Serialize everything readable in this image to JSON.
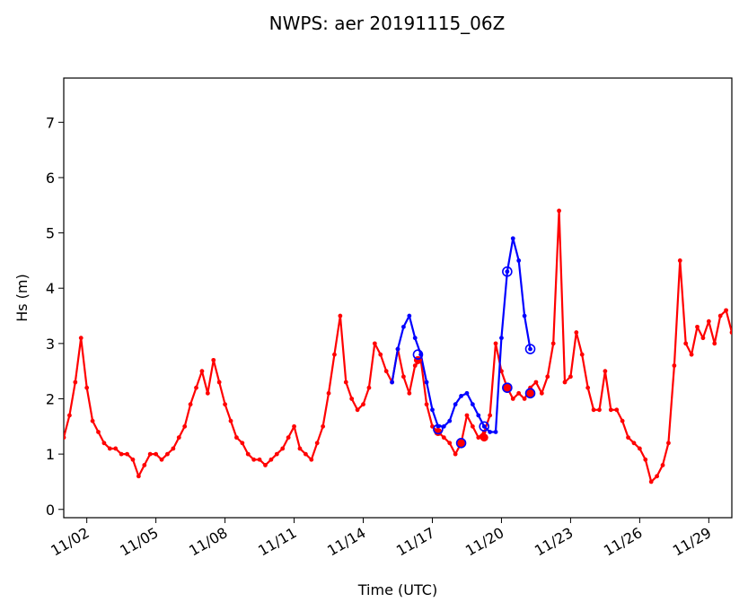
{
  "chart_data": {
    "type": "line",
    "title": "NWPS: aer 20191115_06Z",
    "xlabel": "Time (UTC)",
    "ylabel": "Hs (m)",
    "xlim": [
      "2019-11-01T00:00",
      "2019-11-30T00:00"
    ],
    "ylim": [
      -0.15,
      7.8
    ],
    "x_ticks": [
      {
        "date": "2019-11-02",
        "label": "11/02"
      },
      {
        "date": "2019-11-05",
        "label": "11/05"
      },
      {
        "date": "2019-11-08",
        "label": "11/08"
      },
      {
        "date": "2019-11-11",
        "label": "11/11"
      },
      {
        "date": "2019-11-14",
        "label": "11/14"
      },
      {
        "date": "2019-11-17",
        "label": "11/17"
      },
      {
        "date": "2019-11-20",
        "label": "11/20"
      },
      {
        "date": "2019-11-23",
        "label": "11/23"
      },
      {
        "date": "2019-11-26",
        "label": "11/26"
      },
      {
        "date": "2019-11-29",
        "label": "11/29"
      }
    ],
    "y_ticks": [
      0,
      1,
      2,
      3,
      4,
      5,
      6,
      7
    ],
    "grid": false,
    "legend": "none",
    "series": [
      {
        "color": "#ff0000",
        "marker": "small-dot",
        "points": [
          [
            "2019-11-01T00:00",
            1.3
          ],
          [
            "2019-11-01T06:00",
            1.7
          ],
          [
            "2019-11-01T12:00",
            2.3
          ],
          [
            "2019-11-01T18:00",
            3.1
          ],
          [
            "2019-11-02T00:00",
            2.2
          ],
          [
            "2019-11-02T06:00",
            1.6
          ],
          [
            "2019-11-02T12:00",
            1.4
          ],
          [
            "2019-11-02T18:00",
            1.2
          ],
          [
            "2019-11-03T00:00",
            1.1
          ],
          [
            "2019-11-03T06:00",
            1.1
          ],
          [
            "2019-11-03T12:00",
            1.0
          ],
          [
            "2019-11-03T18:00",
            1.0
          ],
          [
            "2019-11-04T00:00",
            0.9
          ],
          [
            "2019-11-04T06:00",
            0.6
          ],
          [
            "2019-11-04T12:00",
            0.8
          ],
          [
            "2019-11-04T18:00",
            1.0
          ],
          [
            "2019-11-05T00:00",
            1.0
          ],
          [
            "2019-11-05T06:00",
            0.9
          ],
          [
            "2019-11-05T12:00",
            1.0
          ],
          [
            "2019-11-05T18:00",
            1.1
          ],
          [
            "2019-11-06T00:00",
            1.3
          ],
          [
            "2019-11-06T06:00",
            1.5
          ],
          [
            "2019-11-06T12:00",
            1.9
          ],
          [
            "2019-11-06T18:00",
            2.2
          ],
          [
            "2019-11-07T00:00",
            2.5
          ],
          [
            "2019-11-07T06:00",
            2.1
          ],
          [
            "2019-11-07T12:00",
            2.7
          ],
          [
            "2019-11-07T18:00",
            2.3
          ],
          [
            "2019-11-08T00:00",
            1.9
          ],
          [
            "2019-11-08T06:00",
            1.6
          ],
          [
            "2019-11-08T12:00",
            1.3
          ],
          [
            "2019-11-08T18:00",
            1.2
          ],
          [
            "2019-11-09T00:00",
            1.0
          ],
          [
            "2019-11-09T06:00",
            0.9
          ],
          [
            "2019-11-09T12:00",
            0.9
          ],
          [
            "2019-11-09T18:00",
            0.8
          ],
          [
            "2019-11-10T00:00",
            0.9
          ],
          [
            "2019-11-10T06:00",
            1.0
          ],
          [
            "2019-11-10T12:00",
            1.1
          ],
          [
            "2019-11-10T18:00",
            1.3
          ],
          [
            "2019-11-11T00:00",
            1.5
          ],
          [
            "2019-11-11T06:00",
            1.1
          ],
          [
            "2019-11-11T12:00",
            1.0
          ],
          [
            "2019-11-11T18:00",
            0.9
          ],
          [
            "2019-11-12T00:00",
            1.2
          ],
          [
            "2019-11-12T06:00",
            1.5
          ],
          [
            "2019-11-12T12:00",
            2.1
          ],
          [
            "2019-11-12T18:00",
            2.8
          ],
          [
            "2019-11-13T00:00",
            3.5
          ],
          [
            "2019-11-13T06:00",
            2.3
          ],
          [
            "2019-11-13T12:00",
            2.0
          ],
          [
            "2019-11-13T18:00",
            1.8
          ],
          [
            "2019-11-14T00:00",
            1.9
          ],
          [
            "2019-11-14T06:00",
            2.2
          ],
          [
            "2019-11-14T12:00",
            3.0
          ],
          [
            "2019-11-14T18:00",
            2.8
          ],
          [
            "2019-11-15T00:00",
            2.5
          ],
          [
            "2019-11-15T06:00",
            2.3
          ],
          [
            "2019-11-15T12:00",
            2.9
          ],
          [
            "2019-11-15T18:00",
            2.4
          ],
          [
            "2019-11-16T00:00",
            2.1
          ],
          [
            "2019-11-16T06:00",
            2.6
          ],
          [
            "2019-11-16T12:00",
            2.7
          ],
          [
            "2019-11-16T18:00",
            1.9
          ],
          [
            "2019-11-17T00:00",
            1.5
          ],
          [
            "2019-11-17T06:00",
            1.4
          ],
          [
            "2019-11-17T12:00",
            1.3
          ],
          [
            "2019-11-17T18:00",
            1.2
          ],
          [
            "2019-11-18T00:00",
            1.0
          ],
          [
            "2019-11-18T06:00",
            1.2
          ],
          [
            "2019-11-18T12:00",
            1.7
          ],
          [
            "2019-11-18T18:00",
            1.5
          ],
          [
            "2019-11-19T00:00",
            1.3
          ],
          [
            "2019-11-19T06:00",
            1.4
          ],
          [
            "2019-11-19T12:00",
            1.7
          ],
          [
            "2019-11-19T18:00",
            3.0
          ],
          [
            "2019-11-20T00:00",
            2.5
          ],
          [
            "2019-11-20T06:00",
            2.2
          ],
          [
            "2019-11-20T12:00",
            2.0
          ],
          [
            "2019-11-20T18:00",
            2.1
          ],
          [
            "2019-11-21T00:00",
            2.0
          ],
          [
            "2019-11-21T06:00",
            2.2
          ],
          [
            "2019-11-21T12:00",
            2.3
          ],
          [
            "2019-11-21T18:00",
            2.1
          ],
          [
            "2019-11-22T00:00",
            2.4
          ],
          [
            "2019-11-22T06:00",
            3.0
          ],
          [
            "2019-11-22T12:00",
            5.4
          ],
          [
            "2019-11-22T18:00",
            2.3
          ],
          [
            "2019-11-23T00:00",
            2.4
          ],
          [
            "2019-11-23T06:00",
            3.2
          ],
          [
            "2019-11-23T12:00",
            2.8
          ],
          [
            "2019-11-23T18:00",
            2.2
          ],
          [
            "2019-11-24T00:00",
            1.8
          ],
          [
            "2019-11-24T06:00",
            1.8
          ],
          [
            "2019-11-24T12:00",
            2.5
          ],
          [
            "2019-11-24T18:00",
            1.8
          ],
          [
            "2019-11-25T00:00",
            1.8
          ],
          [
            "2019-11-25T06:00",
            1.6
          ],
          [
            "2019-11-25T12:00",
            1.3
          ],
          [
            "2019-11-25T18:00",
            1.2
          ],
          [
            "2019-11-26T00:00",
            1.1
          ],
          [
            "2019-11-26T06:00",
            0.9
          ],
          [
            "2019-11-26T12:00",
            0.5
          ],
          [
            "2019-11-26T18:00",
            0.6
          ],
          [
            "2019-11-27T00:00",
            0.8
          ],
          [
            "2019-11-27T06:00",
            1.2
          ],
          [
            "2019-11-27T12:00",
            2.6
          ],
          [
            "2019-11-27T18:00",
            4.5
          ],
          [
            "2019-11-28T00:00",
            3.0
          ],
          [
            "2019-11-28T06:00",
            2.8
          ],
          [
            "2019-11-28T12:00",
            3.3
          ],
          [
            "2019-11-28T18:00",
            3.1
          ],
          [
            "2019-11-29T00:00",
            3.4
          ],
          [
            "2019-11-29T06:00",
            3.0
          ],
          [
            "2019-11-29T12:00",
            3.5
          ],
          [
            "2019-11-29T18:00",
            3.6
          ],
          [
            "2019-11-30T00:00",
            3.2
          ]
        ]
      },
      {
        "color": "#0000ff",
        "marker": "small-dot",
        "points": [
          [
            "2019-11-15T06:00",
            2.3
          ],
          [
            "2019-11-15T12:00",
            2.9
          ],
          [
            "2019-11-15T18:00",
            3.3
          ],
          [
            "2019-11-16T00:00",
            3.5
          ],
          [
            "2019-11-16T06:00",
            3.1
          ],
          [
            "2019-11-16T12:00",
            2.8
          ],
          [
            "2019-11-16T18:00",
            2.3
          ],
          [
            "2019-11-17T00:00",
            1.8
          ],
          [
            "2019-11-17T06:00",
            1.5
          ],
          [
            "2019-11-17T12:00",
            1.5
          ],
          [
            "2019-11-17T18:00",
            1.6
          ],
          [
            "2019-11-18T00:00",
            1.9
          ],
          [
            "2019-11-18T06:00",
            2.05
          ],
          [
            "2019-11-18T12:00",
            2.1
          ],
          [
            "2019-11-18T18:00",
            1.9
          ],
          [
            "2019-11-19T00:00",
            1.7
          ],
          [
            "2019-11-19T06:00",
            1.5
          ],
          [
            "2019-11-19T12:00",
            1.4
          ],
          [
            "2019-11-19T18:00",
            1.4
          ],
          [
            "2019-11-20T00:00",
            3.1
          ],
          [
            "2019-11-20T06:00",
            4.3
          ],
          [
            "2019-11-20T12:00",
            4.9
          ],
          [
            "2019-11-20T18:00",
            4.5
          ],
          [
            "2019-11-21T00:00",
            3.5
          ],
          [
            "2019-11-21T06:00",
            2.9
          ]
        ]
      },
      {
        "color": "#ff0000",
        "marker": "large-dot",
        "points": [
          [
            "2019-11-16T09:00",
            2.7
          ],
          [
            "2019-11-17T06:00",
            1.4
          ],
          [
            "2019-11-18T06:00",
            1.2
          ],
          [
            "2019-11-19T06:00",
            1.3
          ],
          [
            "2019-11-20T06:00",
            2.2
          ],
          [
            "2019-11-21T06:00",
            2.1
          ]
        ]
      },
      {
        "color": "#0000ff",
        "marker": "large-ring",
        "points": [
          [
            "2019-11-16T09:00",
            2.8
          ],
          [
            "2019-11-17T06:00",
            1.45
          ],
          [
            "2019-11-18T06:00",
            1.2
          ],
          [
            "2019-11-19T06:00",
            1.5
          ],
          [
            "2019-11-20T06:00",
            4.3
          ],
          [
            "2019-11-20T06:00",
            2.2
          ],
          [
            "2019-11-21T06:00",
            2.9
          ],
          [
            "2019-11-21T06:00",
            2.1
          ]
        ]
      }
    ]
  }
}
